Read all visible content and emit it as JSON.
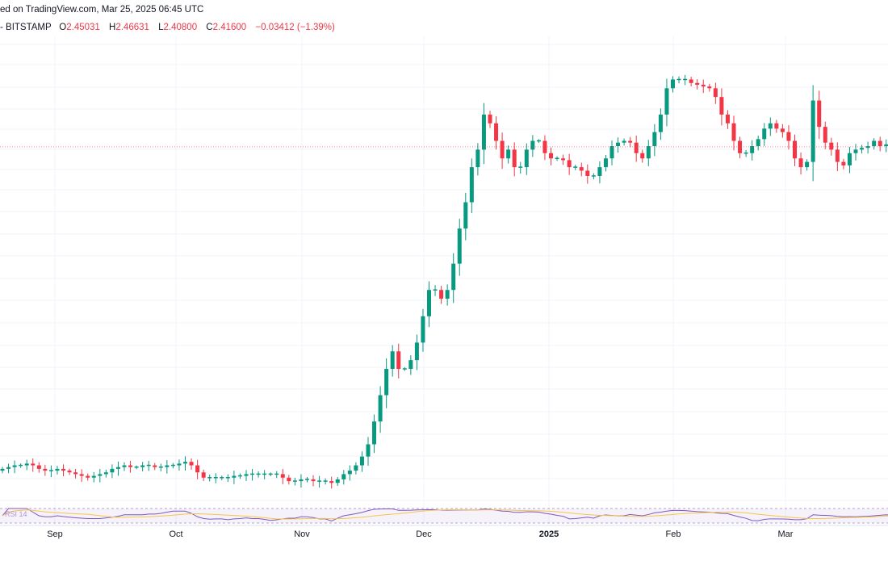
{
  "header": {
    "published": "ed on TradingView.com, Mar 25, 2025 06:45 UTC",
    "exchange": "- BITSTAMP",
    "o_label": "O",
    "o_value": "2.45031",
    "h_label": "H",
    "h_value": "2.46631",
    "l_label": "L",
    "l_value": "2.40800",
    "c_label": "C",
    "c_value": "2.41600",
    "change": "−0.03412 (−1.39%)"
  },
  "indicator_label": "RSI 14",
  "colors": {
    "up": "#089981",
    "down": "#f23645",
    "rsi": "#7e57c2",
    "ma": "#f7c548"
  },
  "chart_data": {
    "type": "candlestick",
    "interval": "daily",
    "x_tick_labels": [
      {
        "label": "Sep",
        "bold": false
      },
      {
        "label": "Oct",
        "bold": false
      },
      {
        "label": "Nov",
        "bold": false
      },
      {
        "label": "Dec",
        "bold": false
      },
      {
        "label": "2025",
        "bold": true
      },
      {
        "label": "Feb",
        "bold": false
      },
      {
        "label": "Mar",
        "bold": false
      }
    ],
    "last_close": 2.416,
    "price_range": [
      0.4,
      3.0
    ],
    "close_series": [
      0.58,
      0.59,
      0.6,
      0.6,
      0.61,
      0.6,
      0.58,
      0.57,
      0.57,
      0.58,
      0.57,
      0.56,
      0.55,
      0.54,
      0.53,
      0.54,
      0.55,
      0.56,
      0.58,
      0.59,
      0.6,
      0.59,
      0.59,
      0.6,
      0.6,
      0.59,
      0.59,
      0.6,
      0.6,
      0.61,
      0.62,
      0.6,
      0.56,
      0.53,
      0.53,
      0.53,
      0.53,
      0.53,
      0.54,
      0.54,
      0.55,
      0.55,
      0.55,
      0.55,
      0.55,
      0.55,
      0.53,
      0.51,
      0.51,
      0.52,
      0.52,
      0.51,
      0.51,
      0.51,
      0.5,
      0.52,
      0.55,
      0.57,
      0.6,
      0.65,
      0.72,
      0.85,
      1.0,
      1.15,
      1.25,
      1.15,
      1.15,
      1.2,
      1.3,
      1.45,
      1.6,
      1.6,
      1.55,
      1.6,
      1.75,
      1.95,
      2.1,
      2.3,
      2.4,
      2.6,
      2.55,
      2.45,
      2.35,
      2.4,
      2.3,
      2.3,
      2.4,
      2.45,
      2.45,
      2.38,
      2.35,
      2.35,
      2.34,
      2.3,
      2.3,
      2.28,
      2.25,
      2.25,
      2.3,
      2.35,
      2.42,
      2.44,
      2.45,
      2.44,
      2.38,
      2.35,
      2.42,
      2.5,
      2.6,
      2.75,
      2.8,
      2.8,
      2.8,
      2.78,
      2.77,
      2.76,
      2.75,
      2.7,
      2.6,
      2.55,
      2.45,
      2.38,
      2.38,
      2.42,
      2.46,
      2.52,
      2.55,
      2.52,
      2.5,
      2.45,
      2.35,
      2.3,
      2.33,
      2.68,
      2.53,
      2.44,
      2.4,
      2.33,
      2.31,
      2.38,
      2.4,
      2.41,
      2.42,
      2.45,
      2.42,
      2.43,
      2.416
    ],
    "rsi_range": [
      0,
      100
    ]
  }
}
